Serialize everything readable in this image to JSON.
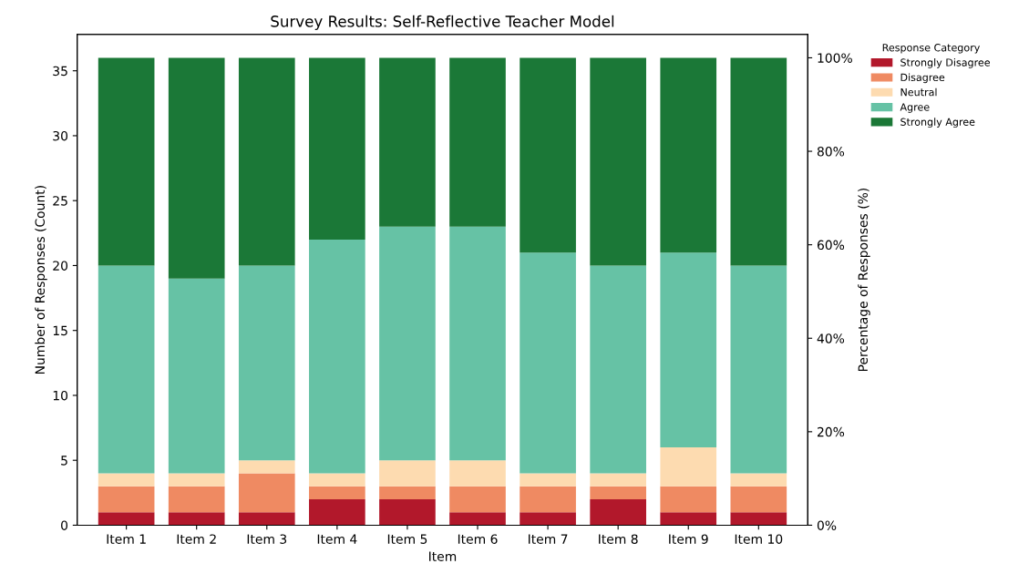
{
  "chart_data": {
    "type": "bar",
    "stacked": true,
    "title": "Survey Results: Self-Reflective Teacher Model",
    "xlabel": "Item",
    "ylabel": "Number of Responses (Count)",
    "y2label": "Percentage of Responses (%)",
    "legend_title": "Response Category",
    "legend": "top right",
    "categories": [
      "Item 1",
      "Item 2",
      "Item 3",
      "Item 4",
      "Item 5",
      "Item 6",
      "Item 7",
      "Item 8",
      "Item 9",
      "Item 10"
    ],
    "series": [
      {
        "name": "Strongly Disagree",
        "color": "#b2182b",
        "values": [
          1,
          1,
          1,
          2,
          2,
          1,
          1,
          2,
          1,
          1
        ]
      },
      {
        "name": "Disagree",
        "color": "#ef8a62",
        "values": [
          2,
          2,
          3,
          1,
          1,
          2,
          2,
          1,
          2,
          2
        ]
      },
      {
        "name": "Neutral",
        "color": "#fddbb0",
        "values": [
          1,
          1,
          1,
          1,
          2,
          2,
          1,
          1,
          3,
          1
        ]
      },
      {
        "name": "Agree",
        "color": "#66c2a5",
        "values": [
          16,
          15,
          15,
          18,
          18,
          18,
          17,
          16,
          15,
          16
        ]
      },
      {
        "name": "Strongly Agree",
        "color": "#1b7837",
        "values": [
          16,
          17,
          16,
          14,
          13,
          13,
          15,
          16,
          15,
          16
        ]
      }
    ],
    "ylim": [
      0,
      37.8
    ],
    "yticks": [
      0,
      5,
      10,
      15,
      20,
      25,
      30,
      35
    ],
    "y2lim": [
      0,
      105
    ],
    "y2ticks": [
      {
        "value": 0,
        "label": "0%"
      },
      {
        "value": 20,
        "label": "20%"
      },
      {
        "value": 40,
        "label": "40%"
      },
      {
        "value": 60,
        "label": "60%"
      },
      {
        "value": 80,
        "label": "80%"
      },
      {
        "value": 100,
        "label": "100%"
      }
    ]
  }
}
